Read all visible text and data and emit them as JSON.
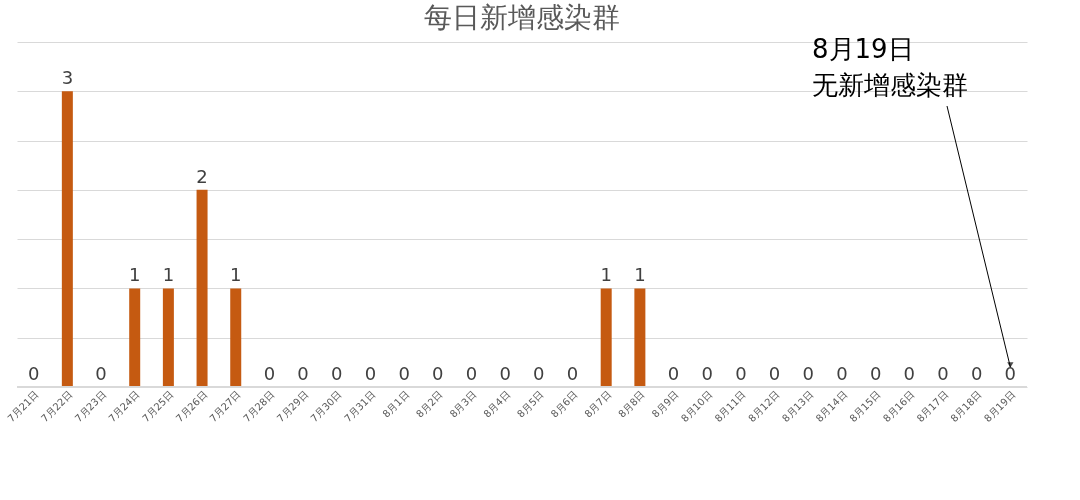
{
  "chart_data": {
    "type": "bar",
    "title": "每日新增感染群",
    "categories": [
      "7月21日",
      "7月22日",
      "7月23日",
      "7月24日",
      "7月25日",
      "7月26日",
      "7月27日",
      "7月28日",
      "7月29日",
      "7月30日",
      "7月31日",
      "8月1日",
      "8月2日",
      "8月3日",
      "8月4日",
      "8月5日",
      "8月6日",
      "8月7日",
      "8月8日",
      "8月9日",
      "8月10日",
      "8月11日",
      "8月12日",
      "8月13日",
      "8月14日",
      "8月15日",
      "8月16日",
      "8月17日",
      "8月18日",
      "8月19日"
    ],
    "values": [
      0,
      3,
      0,
      1,
      1,
      2,
      1,
      0,
      0,
      0,
      0,
      0,
      0,
      0,
      0,
      0,
      0,
      1,
      1,
      0,
      0,
      0,
      0,
      0,
      0,
      0,
      0,
      0,
      0,
      0
    ],
    "color": "#c55a11",
    "ylim": [
      0,
      3.5
    ],
    "yticks": [
      0,
      0.5,
      1,
      1.5,
      2,
      2.5,
      3,
      3.5
    ],
    "tick_labels": "x",
    "grid": "y",
    "data_labels": true,
    "annotations": [
      "8月19日",
      "无新增感染群"
    ]
  }
}
